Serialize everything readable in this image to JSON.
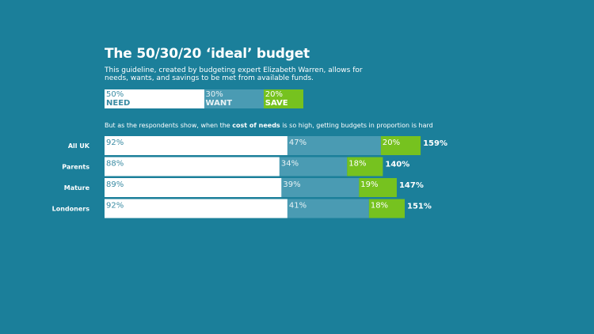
{
  "title": "The 50/30/20 ‘ideal’ budget",
  "description": "This guideline, created by budgeting expert Elizabeth Warren, allows for needs, wants, and savings to be met from available funds.",
  "ideal": [
    {
      "pct": "50%",
      "label": "NEED",
      "value": 50
    },
    {
      "pct": "30%",
      "label": "WANT",
      "value": 30
    },
    {
      "pct": "20%",
      "label": "SAVE",
      "value": 20
    }
  ],
  "subtitle": {
    "before": "But as the respondents show, when the ",
    "bold": "cost of needs",
    "after": " is so high, getting budgets in proportion is hard"
  },
  "colors": {
    "background": "#1b7f9a",
    "need": "#ffffff",
    "want": "#4a9bb3",
    "save": "#76c21f",
    "need_text": "#3a8ba3",
    "want_text": "#e8f2f5",
    "save_text": "#ffffff"
  },
  "chart_data": {
    "type": "bar",
    "stacked": true,
    "orientation": "horizontal",
    "categories": [
      "All UK",
      "Parents",
      "Mature",
      "Londoners"
    ],
    "series": [
      {
        "name": "NEED",
        "values": [
          92,
          88,
          89,
          92
        ]
      },
      {
        "name": "WANT",
        "values": [
          47,
          34,
          39,
          41
        ]
      },
      {
        "name": "SAVE",
        "values": [
          20,
          18,
          19,
          18
        ]
      }
    ],
    "totals": [
      "159%",
      "140%",
      "147%",
      "151%"
    ],
    "value_labels": [
      [
        "92%",
        "47%",
        "20%"
      ],
      [
        "88%",
        "34%",
        "18%"
      ],
      [
        "89%",
        "39%",
        "19%"
      ],
      [
        "92%",
        "41%",
        "18%"
      ]
    ]
  }
}
